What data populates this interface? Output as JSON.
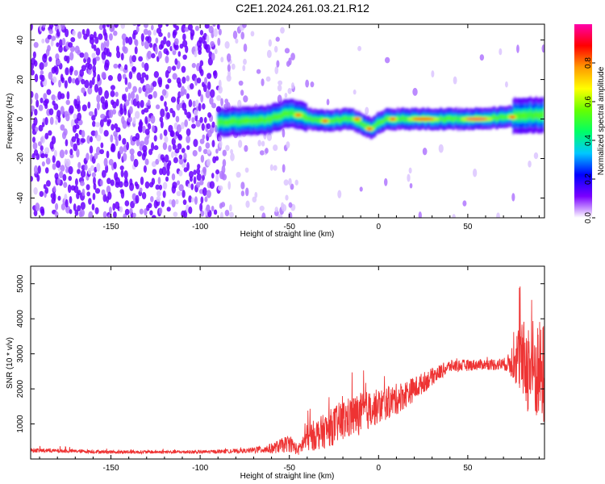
{
  "title": "C2E1.2024.261.03.21.R12",
  "chart_data": [
    {
      "type": "heatmap",
      "name": "spectrogram",
      "xlabel": "Height of straight line (km)",
      "ylabel": "Frequency (Hz)",
      "xlim": [
        -195,
        93
      ],
      "ylim": [
        -50,
        48
      ],
      "x_ticks": [
        -150,
        -100,
        -50,
        0,
        50
      ],
      "x_tick_labels": [
        "-150",
        "-100",
        "-50",
        "0",
        "50"
      ],
      "y_ticks": [
        -40,
        -20,
        0,
        20,
        40
      ],
      "y_tick_labels": [
        "-40",
        "-20",
        "0",
        "20",
        "40"
      ],
      "colorbar": {
        "label": "Normalized spectral amplitude",
        "range": [
          0,
          1
        ],
        "ticks": [
          0.0,
          0.2,
          0.4,
          0.6,
          0.8
        ],
        "tick_labels": [
          "0.0",
          "0.2",
          "0.4",
          "0.6",
          "0.8"
        ],
        "colormap": [
          "#ffffff",
          "#7a00ff",
          "#0000ff",
          "#00c8ff",
          "#00ff66",
          "#66ff00",
          "#ffff00",
          "#ff9900",
          "#ff0000",
          "#ff00aa"
        ]
      },
      "ridge_center": [
        {
          "x": -90,
          "y": -2
        },
        {
          "x": -80,
          "y": -1
        },
        {
          "x": -70,
          "y": -1
        },
        {
          "x": -60,
          "y": 0
        },
        {
          "x": -52,
          "y": 3
        },
        {
          "x": -45,
          "y": 2
        },
        {
          "x": -38,
          "y": 0
        },
        {
          "x": -30,
          "y": -1
        },
        {
          "x": -20,
          "y": 0
        },
        {
          "x": -15,
          "y": 0
        },
        {
          "x": -8,
          "y": -3
        },
        {
          "x": -4,
          "y": -5
        },
        {
          "x": 0,
          "y": -2
        },
        {
          "x": 5,
          "y": 0
        },
        {
          "x": 10,
          "y": 0
        },
        {
          "x": 20,
          "y": 0
        },
        {
          "x": 40,
          "y": 0
        },
        {
          "x": 60,
          "y": 0
        },
        {
          "x": 70,
          "y": 1
        },
        {
          "x": 80,
          "y": 2
        },
        {
          "x": 93,
          "y": 2
        }
      ],
      "ridge_peaks": [
        {
          "x": -45,
          "y": 2,
          "v": 0.85
        },
        {
          "x": -30,
          "y": -1,
          "v": 0.9
        },
        {
          "x": -12,
          "y": 0,
          "v": 0.85
        },
        {
          "x": -5,
          "y": -5,
          "v": 0.9
        },
        {
          "x": 8,
          "y": 0,
          "v": 0.9
        },
        {
          "x": 25,
          "y": 0,
          "v": 0.85
        },
        {
          "x": 55,
          "y": 0,
          "v": 0.95
        },
        {
          "x": 75,
          "y": 1,
          "v": 0.9
        }
      ]
    },
    {
      "type": "line",
      "name": "snr",
      "xlabel": "Height of straight line (km)",
      "ylabel": "SNR (10 * v/v)",
      "xlim": [
        -195,
        93
      ],
      "ylim": [
        0,
        5500
      ],
      "x_ticks": [
        -150,
        -100,
        -50,
        0,
        50
      ],
      "x_tick_labels": [
        "-150",
        "-100",
        "-50",
        "0",
        "50"
      ],
      "y_ticks": [
        1000,
        2000,
        3000,
        4000,
        5000
      ],
      "y_tick_labels": [
        "1000",
        "2000",
        "3000",
        "4000",
        "5000"
      ],
      "color": "#ee3333",
      "envelope": [
        {
          "x": -195,
          "mean": 250,
          "spread": 60
        },
        {
          "x": -150,
          "mean": 200,
          "spread": 50
        },
        {
          "x": -100,
          "mean": 200,
          "spread": 50
        },
        {
          "x": -75,
          "mean": 230,
          "spread": 60
        },
        {
          "x": -60,
          "mean": 300,
          "spread": 150
        },
        {
          "x": -50,
          "mean": 450,
          "spread": 250
        },
        {
          "x": -45,
          "mean": 250,
          "spread": 150
        },
        {
          "x": -40,
          "mean": 600,
          "spread": 400
        },
        {
          "x": -30,
          "mean": 800,
          "spread": 500
        },
        {
          "x": -20,
          "mean": 1100,
          "spread": 600
        },
        {
          "x": -10,
          "mean": 1300,
          "spread": 600
        },
        {
          "x": 0,
          "mean": 1500,
          "spread": 500
        },
        {
          "x": 10,
          "mean": 1700,
          "spread": 450
        },
        {
          "x": 20,
          "mean": 2000,
          "spread": 350
        },
        {
          "x": 30,
          "mean": 2350,
          "spread": 250
        },
        {
          "x": 40,
          "mean": 2650,
          "spread": 180
        },
        {
          "x": 60,
          "mean": 2700,
          "spread": 150
        },
        {
          "x": 72,
          "mean": 2700,
          "spread": 200
        },
        {
          "x": 78,
          "mean": 2900,
          "spread": 900
        },
        {
          "x": 85,
          "mean": 2600,
          "spread": 1500
        },
        {
          "x": 93,
          "mean": 2400,
          "spread": 1500
        }
      ]
    }
  ]
}
